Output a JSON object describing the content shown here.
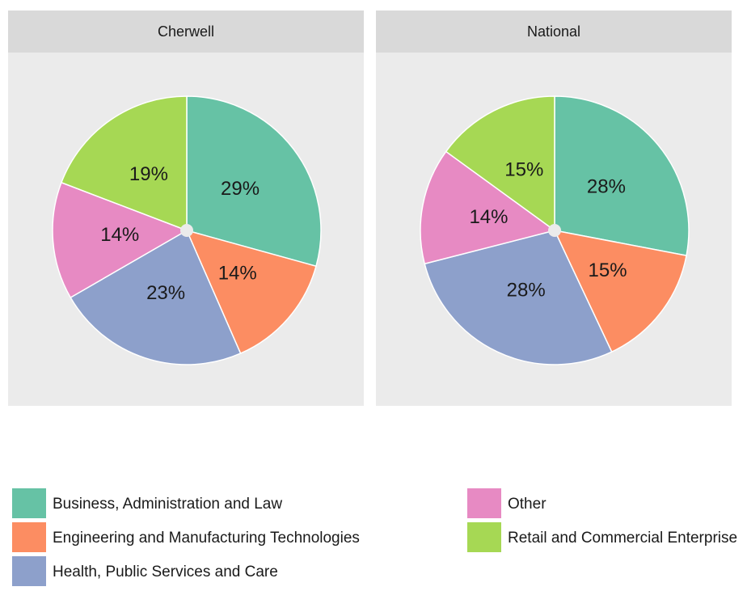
{
  "chart_data": [
    {
      "type": "pie",
      "title": "Cherwell",
      "categories": [
        "Business, Administration and Law",
        "Engineering and Manufacturing Technologies",
        "Health, Public Services and Care",
        "Other",
        "Retail and Commercial Enterprise"
      ],
      "values": [
        29,
        14,
        23,
        14,
        19
      ],
      "value_labels": [
        "29%",
        "14%",
        "23%",
        "14%",
        "19%"
      ],
      "colors": [
        "#66c2a5",
        "#fc8d62",
        "#8da0cb",
        "#e78ac3",
        "#a6d854"
      ]
    },
    {
      "type": "pie",
      "title": "National",
      "categories": [
        "Business, Administration and Law",
        "Engineering and Manufacturing Technologies",
        "Health, Public Services and Care",
        "Other",
        "Retail and Commercial Enterprise"
      ],
      "values": [
        28,
        15,
        28,
        14,
        15
      ],
      "value_labels": [
        "28%",
        "15%",
        "28%",
        "14%",
        "15%"
      ],
      "colors": [
        "#66c2a5",
        "#fc8d62",
        "#8da0cb",
        "#e78ac3",
        "#a6d854"
      ]
    }
  ]
}
